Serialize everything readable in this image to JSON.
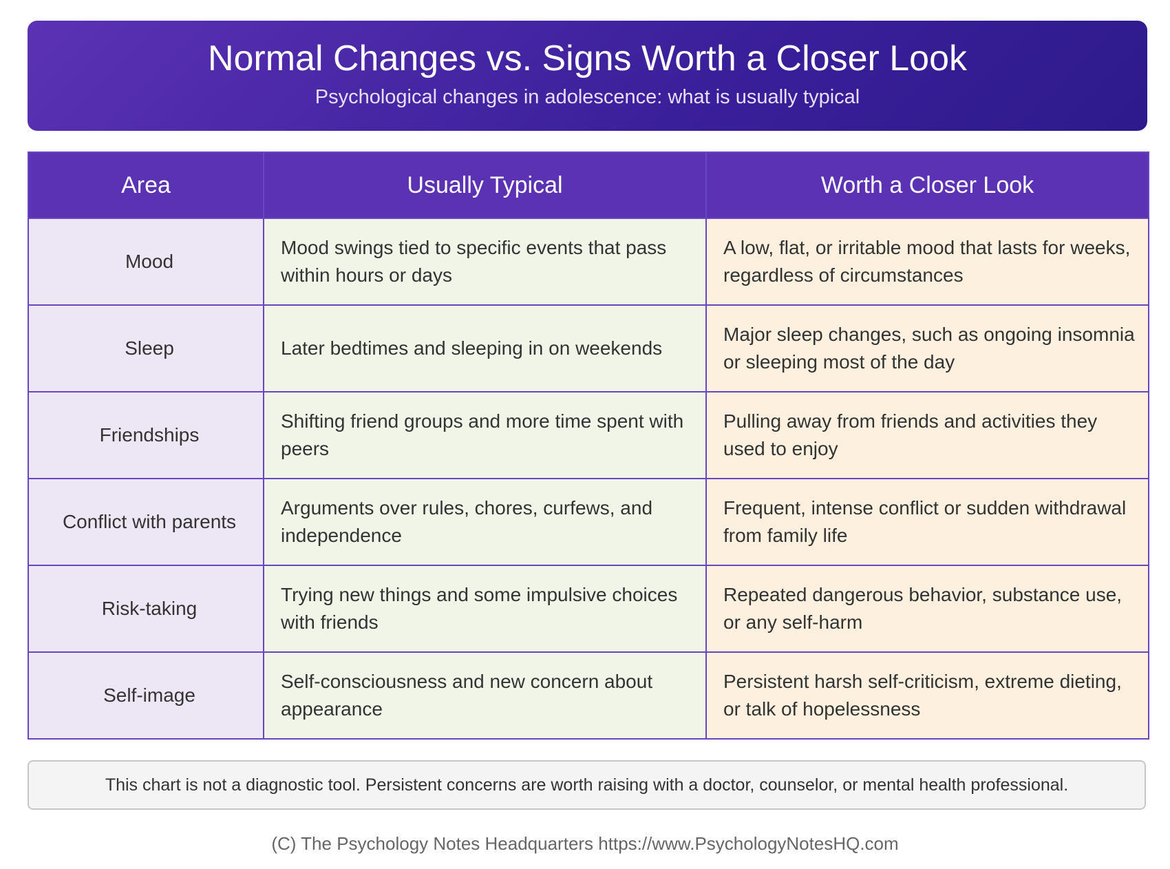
{
  "header": {
    "title": "Normal Changes vs. Signs Worth a Closer Look",
    "subtitle": "Psychological changes in adolescence: what is usually typical"
  },
  "table": {
    "columns": [
      "Area",
      "Usually Typical",
      "Worth a Closer Look"
    ],
    "rows": [
      {
        "area": "Mood",
        "typical": "Mood swings tied to specific events that pass within hours or days",
        "closer": "A low, flat, or irritable mood that lasts for weeks, regardless of circumstances"
      },
      {
        "area": "Sleep",
        "typical": "Later bedtimes and sleeping in on weekends",
        "closer": "Major sleep changes, such as ongoing insomnia or sleeping most of the day"
      },
      {
        "area": "Friendships",
        "typical": "Shifting friend groups and more time spent with peers",
        "closer": "Pulling away from friends and activities they used to enjoy"
      },
      {
        "area": "Conflict with parents",
        "typical": "Arguments over rules, chores, curfews, and independence",
        "closer": "Frequent, intense conflict or sudden withdrawal from family life"
      },
      {
        "area": "Risk-taking",
        "typical": "Trying new things and some impulsive choices with friends",
        "closer": "Repeated dangerous behavior, substance use, or any self-harm"
      },
      {
        "area": "Self-image",
        "typical": "Self-consciousness and new concern about appearance",
        "closer": "Persistent harsh self-criticism, extreme dieting, or talk of hopelessness"
      }
    ]
  },
  "note": "This chart is not a diagnostic tool. Persistent concerns are worth raising with a doctor, counselor, or mental health professional.",
  "credit": "(C) The Psychology Notes Headquarters https://www.PsychologyNotesHQ.com",
  "colors": {
    "header_purple": "#5b32b4",
    "area_bg": "#ede6f5",
    "typical_bg": "#f0f5e8",
    "closer_bg": "#fef0df"
  }
}
